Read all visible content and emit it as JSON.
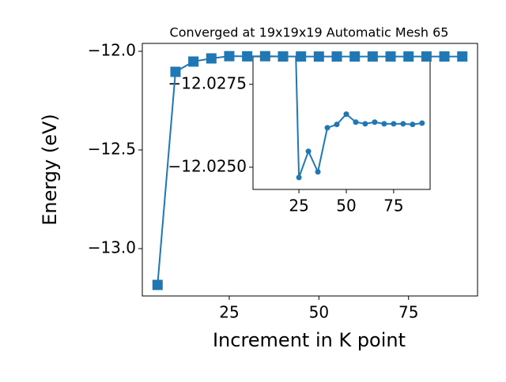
{
  "chart_data": {
    "type": "line",
    "title": "Converged at 19x19x19 Automatic Mesh 65",
    "x_label": "Increment in K point",
    "y_label": "Energy (eV)",
    "x": [
      5,
      10,
      15,
      20,
      25,
      30,
      35,
      40,
      45,
      50,
      55,
      60,
      65,
      70,
      75,
      80,
      85,
      90
    ],
    "series": [
      {
        "color": "#1f77b4",
        "values": [
          -13.184,
          -12.104,
          -12.052,
          -12.036,
          -12.02469,
          -12.02548,
          -12.02486,
          -12.02619,
          -12.02629,
          -12.0266,
          -12.02636,
          -12.02631,
          -12.02636,
          -12.02631,
          -12.02631,
          -12.02631,
          -12.02629,
          -12.02633
        ]
      }
    ],
    "xlim": [
      0.75,
      94.25
    ],
    "ylim": [
      -13.24,
      -11.96
    ],
    "xticks": [
      25,
      50,
      75
    ],
    "yticks": [
      {
        "value": -13.0,
        "label": "−13.0"
      },
      {
        "value": -12.5,
        "label": "−12.5"
      },
      {
        "value": -12.0,
        "label": "−12.0"
      }
    ],
    "inset": {
      "xlim": [
        0.75,
        94.25
      ],
      "ylim": [
        -12.02433,
        -12.02833
      ],
      "xticks": [
        25,
        50,
        75
      ],
      "yticks": [
        {
          "value": -12.025,
          "label": "−12.0250"
        },
        {
          "value": -12.0275,
          "label": "−12.0275"
        }
      ]
    }
  }
}
